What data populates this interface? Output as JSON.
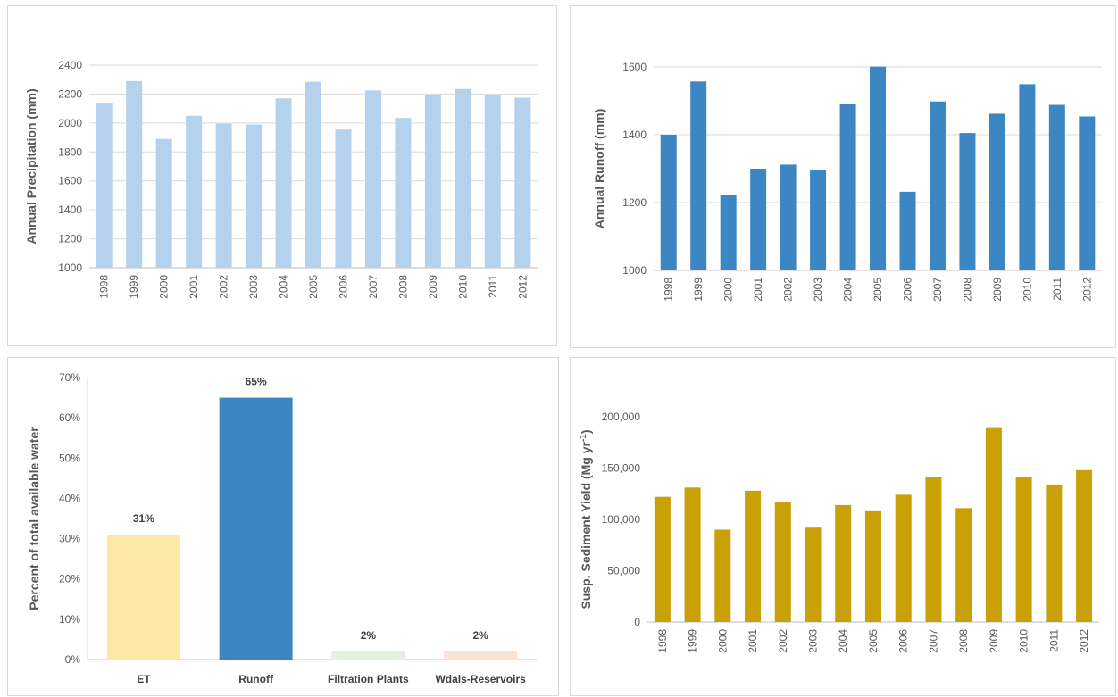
{
  "chart_data": [
    {
      "id": "precip",
      "type": "bar",
      "ylabel": "Annual Precipitation (mm)",
      "categories": [
        "1998",
        "1999",
        "2000",
        "2001",
        "2002",
        "2003",
        "2004",
        "2005",
        "2006",
        "2007",
        "2008",
        "2009",
        "2010",
        "2011",
        "2012"
      ],
      "values": [
        2140,
        2290,
        1890,
        2050,
        1995,
        1990,
        2170,
        2285,
        1955,
        2225,
        2035,
        2195,
        2235,
        2190,
        2175
      ],
      "ylim": [
        1000,
        2400
      ],
      "yticks": [
        1000,
        1200,
        1400,
        1600,
        1800,
        2000,
        2200,
        2400
      ],
      "grid": true,
      "color": "#b4d2ee",
      "xtick_rotation": -90
    },
    {
      "id": "runoff",
      "type": "bar",
      "ylabel": "Annual Runoff (mm)",
      "categories": [
        "1998",
        "1999",
        "2000",
        "2001",
        "2002",
        "2003",
        "2004",
        "2005",
        "2006",
        "2007",
        "2008",
        "2009",
        "2010",
        "2011",
        "2012"
      ],
      "values": [
        1400,
        1557,
        1222,
        1300,
        1312,
        1297,
        1492,
        1601,
        1232,
        1498,
        1405,
        1462,
        1549,
        1488,
        1454
      ],
      "ylim": [
        1000,
        1600
      ],
      "yticks": [
        1000,
        1200,
        1400,
        1600
      ],
      "grid": true,
      "color": "#3c87c3",
      "xtick_rotation": -90
    },
    {
      "id": "water",
      "type": "bar",
      "ylabel": "Percent of total available water",
      "categories": [
        "ET",
        "Runoff",
        "Filtration Plants",
        "Wdals-Reservoirs"
      ],
      "values": [
        31,
        65,
        2,
        2
      ],
      "data_labels": [
        "31%",
        "65%",
        "2%",
        "2%"
      ],
      "ylim": [
        0,
        70
      ],
      "yticks": [
        0,
        10,
        20,
        30,
        40,
        50,
        60,
        70
      ],
      "ytick_labels": [
        "0%",
        "10%",
        "20%",
        "30%",
        "40%",
        "50%",
        "60%",
        "70%"
      ],
      "grid": false,
      "colors": [
        "#fde8a6",
        "#3c87c3",
        "#e4f1dc",
        "#fbe2d6"
      ],
      "xtick_rotation": 0
    },
    {
      "id": "sediment",
      "type": "bar",
      "ylabel": "Susp. Sediment Yield (Mg  yr",
      "ylabel_sup": "-1",
      "ylabel_tail": ")",
      "categories": [
        "1998",
        "1999",
        "2000",
        "2001",
        "2002",
        "2003",
        "2004",
        "2005",
        "2006",
        "2007",
        "2008",
        "2009",
        "2010",
        "2011",
        "2012"
      ],
      "values": [
        122000,
        131000,
        90000,
        128000,
        117000,
        92000,
        114000,
        108000,
        124000,
        141000,
        111000,
        189000,
        141000,
        134000,
        148000
      ],
      "ylim": [
        0,
        200000
      ],
      "yticks": [
        0,
        50000,
        100000,
        150000,
        200000
      ],
      "ytick_labels": [
        "0",
        "50,000",
        "100,000",
        "150,000",
        "200,000"
      ],
      "grid": false,
      "color": "#c9a106",
      "xtick_rotation": -90
    }
  ]
}
